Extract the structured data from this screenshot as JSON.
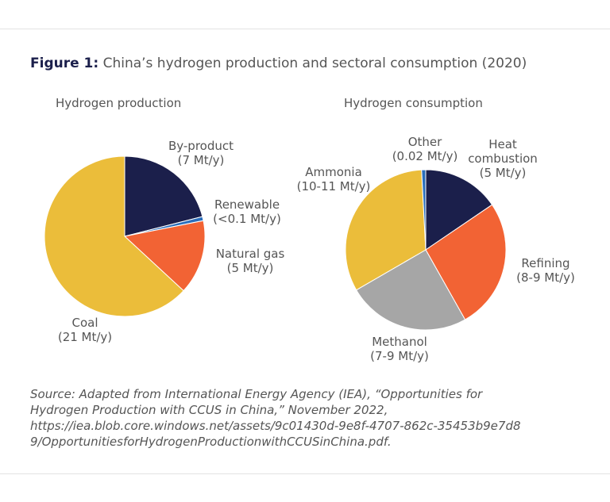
{
  "figure": {
    "label": "Figure 1:",
    "title": "China’s hydrogen production and sectoral consumption (2020)"
  },
  "chart_data": [
    {
      "type": "pie",
      "title": "Hydrogen production",
      "unit": "Mt/y",
      "slices": [
        {
          "name": "By-product",
          "label": "(7 Mt/y)",
          "value": 7,
          "color": "#1b1f4b"
        },
        {
          "name": "Renewable",
          "label": "(<0.1 Mt/y)",
          "value": 0.1,
          "color": "#2a6ebb"
        },
        {
          "name": "Natural gas",
          "label": "(5 Mt/y)",
          "value": 5,
          "color": "#f26334"
        },
        {
          "name": "Coal",
          "label": "(21 Mt/y)",
          "value": 21,
          "color": "#ebbd3a"
        }
      ]
    },
    {
      "type": "pie",
      "title": "Hydrogen consumption",
      "unit": "Mt/y",
      "slices": [
        {
          "name": "Heat combustion",
          "label": "(5 Mt/y)",
          "value": 5,
          "color": "#1b1f4b"
        },
        {
          "name": "Refining",
          "label": "(8-9 Mt/y)",
          "value": 8.5,
          "color": "#f26334"
        },
        {
          "name": "Methanol",
          "label": "(7-9 Mt/y)",
          "value": 8,
          "color": "#a6a6a6"
        },
        {
          "name": "Ammonia",
          "label": "(10-11 Mt/y)",
          "value": 10.5,
          "color": "#ebbd3a"
        },
        {
          "name": "Other",
          "label": "(0.02 Mt/y)",
          "value": 0.02,
          "color": "#2a6ebb"
        }
      ]
    }
  ],
  "source": [
    "Source: Adapted from International Energy Agency (IEA), “Opportunities for",
    "Hydrogen Production with CCUS in China,” November 2022,",
    "https://iea.blob.core.windows.net/assets/9c01430d-9e8f-4707-862c-35453b9e7d8",
    "9/OpportunitiesforHydrogenProductionwithCCUSinChina.pdf."
  ]
}
